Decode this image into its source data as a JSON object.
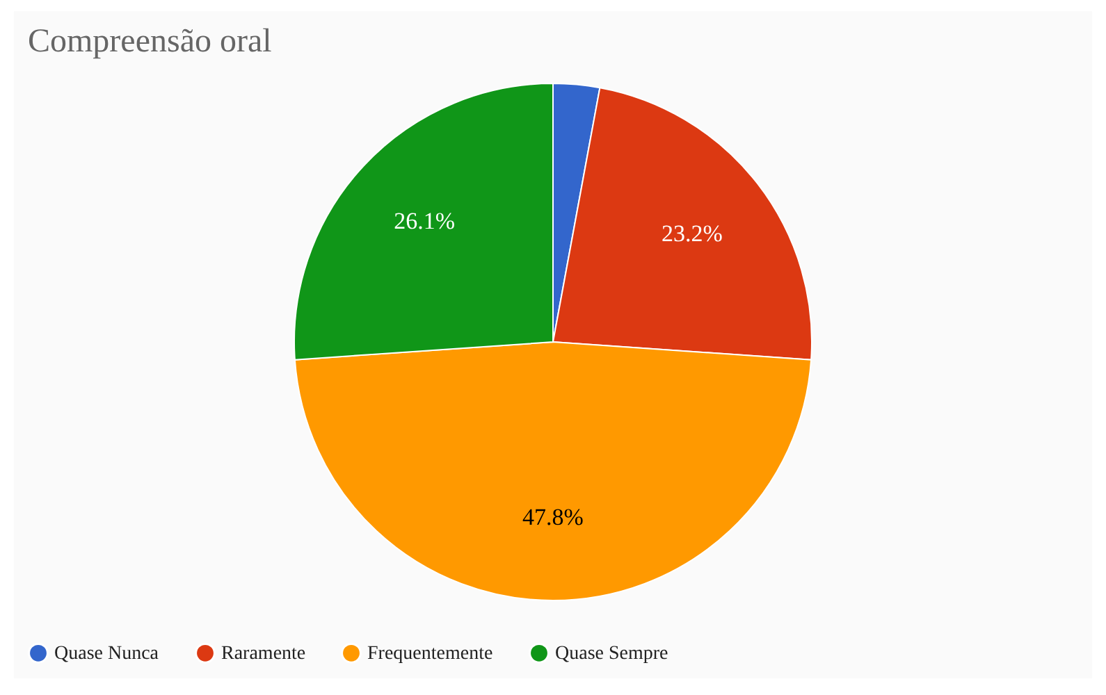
{
  "chart_data": {
    "type": "pie",
    "title": "Compreensão oral",
    "categories": [
      "Quase Nunca",
      "Raramente",
      "Frequentemente",
      "Quase Sempre"
    ],
    "values": [
      2.9,
      23.2,
      47.8,
      26.1
    ],
    "colors": [
      "#3366cc",
      "#dc3912",
      "#ff9900",
      "#109618"
    ],
    "value_labels": [
      null,
      "23.2%",
      "47.8%",
      "26.1%"
    ],
    "legend": "bottom"
  }
}
